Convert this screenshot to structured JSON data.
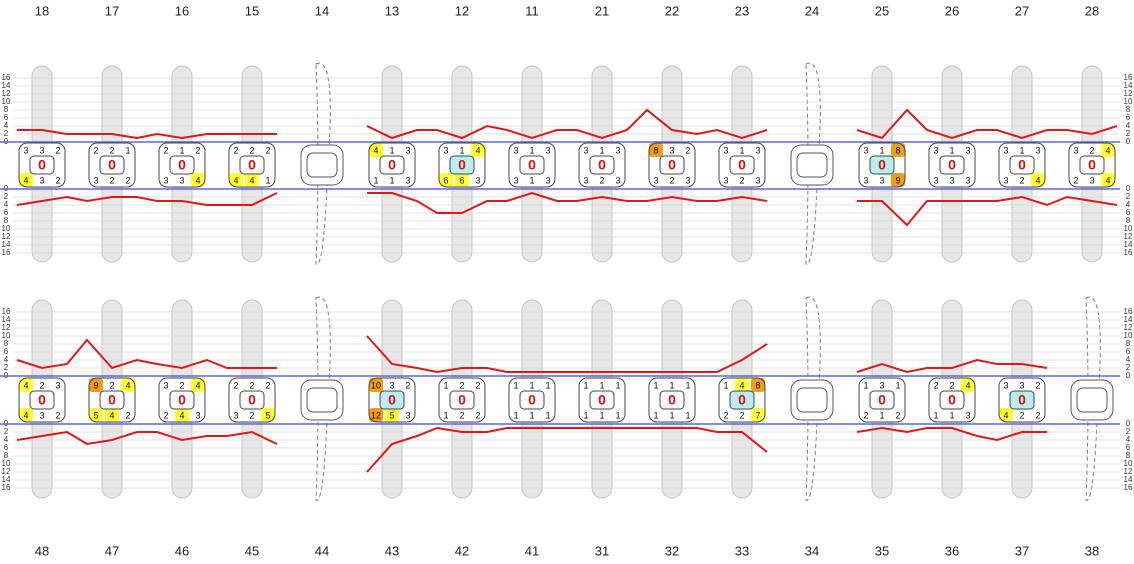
{
  "upper": {
    "teeth": [
      {
        "number": "18",
        "center": 0,
        "top": [
          3,
          3,
          2
        ],
        "bottom": [
          4,
          3,
          2
        ],
        "highlight": false
      },
      {
        "number": "17",
        "center": 0,
        "top": [
          2,
          2,
          1
        ],
        "bottom": [
          3,
          2,
          2
        ],
        "highlight": false
      },
      {
        "number": "16",
        "center": 0,
        "top": [
          2,
          1,
          2
        ],
        "bottom": [
          3,
          3,
          4
        ],
        "highlight": false
      },
      {
        "number": "15",
        "center": 0,
        "top": [
          2,
          2,
          2
        ],
        "bottom": [
          4,
          4,
          1
        ],
        "highlight": false
      },
      {
        "number": "14",
        "missing": true
      },
      {
        "number": "13",
        "center": 0,
        "top": [
          4,
          1,
          3
        ],
        "bottom": [
          1,
          1,
          3
        ],
        "highlight": false
      },
      {
        "number": "12",
        "center": 0,
        "top": [
          3,
          1,
          4
        ],
        "bottom": [
          6,
          6,
          3
        ],
        "highlight": true
      },
      {
        "number": "11",
        "center": 0,
        "top": [
          3,
          1,
          3
        ],
        "bottom": [
          3,
          1,
          3
        ],
        "highlight": false
      },
      {
        "number": "21",
        "center": 0,
        "top": [
          3,
          1,
          3
        ],
        "bottom": [
          3,
          2,
          3
        ],
        "highlight": false
      },
      {
        "number": "22",
        "center": 0,
        "top": [
          8,
          3,
          2
        ],
        "bottom": [
          3,
          2,
          3
        ],
        "highlight": false
      },
      {
        "number": "23",
        "center": 0,
        "top": [
          3,
          1,
          3
        ],
        "bottom": [
          3,
          2,
          3
        ],
        "highlight": false
      },
      {
        "number": "24",
        "missing": true
      },
      {
        "number": "25",
        "center": 0,
        "top": [
          3,
          1,
          8
        ],
        "bottom": [
          3,
          3,
          9
        ],
        "highlight": true
      },
      {
        "number": "26",
        "center": 0,
        "top": [
          3,
          1,
          3
        ],
        "bottom": [
          3,
          3,
          3
        ],
        "highlight": false
      },
      {
        "number": "27",
        "center": 0,
        "top": [
          3,
          1,
          3
        ],
        "bottom": [
          3,
          2,
          4
        ],
        "highlight": false
      },
      {
        "number": "28",
        "center": 0,
        "top": [
          3,
          2,
          4
        ],
        "bottom": [
          2,
          3,
          4
        ],
        "highlight": false
      }
    ]
  },
  "lower": {
    "teeth": [
      {
        "number": "48",
        "center": 0,
        "top": [
          4,
          2,
          3
        ],
        "bottom": [
          4,
          3,
          2
        ],
        "highlight": false
      },
      {
        "number": "47",
        "center": 0,
        "top": [
          9,
          2,
          4
        ],
        "bottom": [
          5,
          4,
          2
        ],
        "highlight": false
      },
      {
        "number": "46",
        "center": 0,
        "top": [
          3,
          2,
          4
        ],
        "bottom": [
          2,
          4,
          3
        ],
        "highlight": false
      },
      {
        "number": "45",
        "center": 0,
        "top": [
          2,
          2,
          2
        ],
        "bottom": [
          3,
          2,
          5
        ],
        "highlight": false
      },
      {
        "number": "44",
        "missing": true
      },
      {
        "number": "43",
        "center": 0,
        "top": [
          10,
          3,
          2
        ],
        "bottom": [
          12,
          5,
          3
        ],
        "highlight": true
      },
      {
        "number": "42",
        "center": 0,
        "top": [
          1,
          2,
          2
        ],
        "bottom": [
          1,
          2,
          2
        ],
        "highlight": false
      },
      {
        "number": "41",
        "center": 0,
        "top": [
          1,
          1,
          1
        ],
        "bottom": [
          1,
          1,
          1
        ],
        "highlight": false
      },
      {
        "number": "31",
        "center": 0,
        "top": [
          1,
          1,
          1
        ],
        "bottom": [
          1,
          1,
          1
        ],
        "highlight": false
      },
      {
        "number": "32",
        "center": 0,
        "top": [
          1,
          1,
          1
        ],
        "bottom": [
          1,
          1,
          1
        ],
        "highlight": false
      },
      {
        "number": "33",
        "center": 0,
        "top": [
          1,
          4,
          8
        ],
        "bottom": [
          2,
          2,
          7
        ],
        "highlight": true
      },
      {
        "number": "34",
        "missing": true
      },
      {
        "number": "35",
        "center": 0,
        "top": [
          1,
          3,
          1
        ],
        "bottom": [
          2,
          1,
          2
        ],
        "highlight": false
      },
      {
        "number": "36",
        "center": 0,
        "top": [
          2,
          2,
          4
        ],
        "bottom": [
          1,
          1,
          3
        ],
        "highlight": false
      },
      {
        "number": "37",
        "center": 0,
        "top": [
          3,
          3,
          2
        ],
        "bottom": [
          4,
          2,
          2
        ],
        "highlight": true
      },
      {
        "number": "38",
        "missing": true
      }
    ]
  },
  "scale": [
    0,
    2,
    4,
    6,
    8,
    10,
    12,
    14,
    16
  ]
}
